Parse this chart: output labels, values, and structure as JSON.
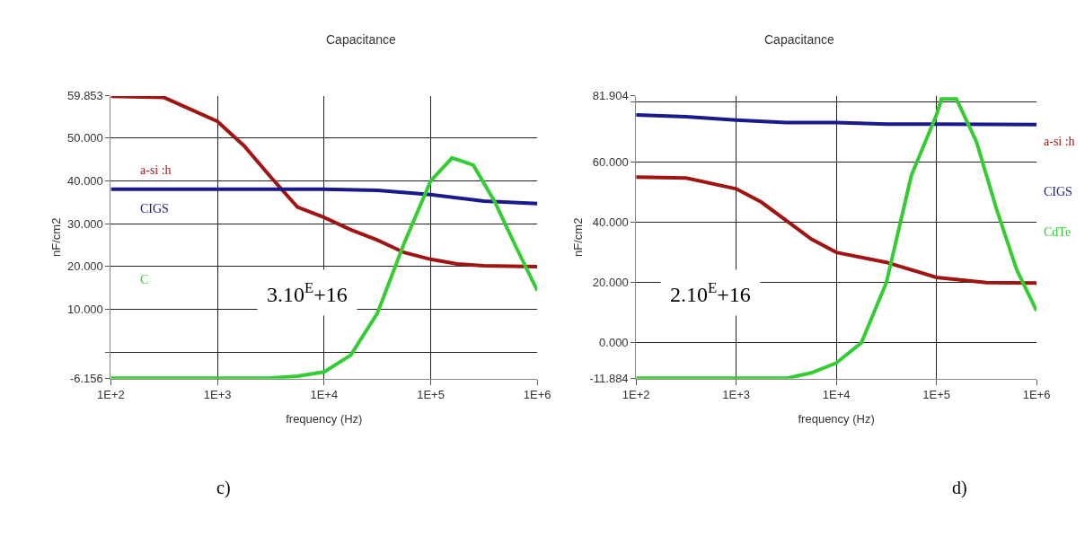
{
  "chart_data": [
    {
      "type": "line",
      "title": "Capacitance",
      "xlabel": "frequency (Hz)",
      "ylabel": "nF/cm2",
      "log": "x",
      "grid": true,
      "marker": "none",
      "line_style": "solid",
      "xlim": [
        100,
        1000000
      ],
      "xticks": [
        {
          "value": 100,
          "label": "1E+2"
        },
        {
          "value": 1000,
          "label": "1E+3"
        },
        {
          "value": 10000,
          "label": "1E+4"
        },
        {
          "value": 100000,
          "label": "1E+5"
        },
        {
          "value": 1000000,
          "label": "1E+6"
        }
      ],
      "ylim": [
        -6.156,
        59.853
      ],
      "yticks": [
        {
          "value": -6.156,
          "label": "-6.156"
        },
        {
          "value": 0,
          "label": null
        },
        {
          "value": 10,
          "label": "10.000"
        },
        {
          "value": 20,
          "label": "20.000"
        },
        {
          "value": 30,
          "label": "30.000"
        },
        {
          "value": 40,
          "label": "40.000"
        },
        {
          "value": 50,
          "label": "50.000"
        },
        {
          "value": 59.853,
          "label": "59.853"
        }
      ],
      "series": [
        {
          "name": "a-si :h",
          "color": "#a01414",
          "x": [
            100,
            316,
            1000,
            1778,
            3162,
            5623,
            10000,
            17783,
            31623,
            56234,
            100000,
            177828,
            316228,
            562341,
            1000000
          ],
          "values": [
            59.8,
            59.5,
            53.9,
            48.2,
            40.9,
            33.9,
            31.5,
            28.6,
            26.2,
            23.3,
            21.7,
            20.6,
            20.2,
            20.1,
            20.0
          ]
        },
        {
          "name": "CIGS",
          "color": "#1a1a8c",
          "x": [
            100,
            1000,
            10000,
            31623,
            100000,
            316228,
            1000000
          ],
          "values": [
            38.1,
            38.1,
            38.1,
            37.8,
            36.8,
            35.3,
            34.7
          ]
        },
        {
          "name": "C",
          "color": "#33cc33",
          "x": [
            100,
            1000,
            3162,
            5623,
            10000,
            17783,
            31623,
            56234,
            100000,
            158489,
            251189,
            398107,
            630957,
            1000000
          ],
          "values": [
            -6.1,
            -6.1,
            -6.0,
            -5.6,
            -4.6,
            -0.7,
            9.1,
            25.4,
            40.0,
            45.4,
            43.7,
            35.2,
            24.6,
            14.4
          ]
        }
      ],
      "annotations": [
        "3.10$^{E}$+16",
        "c)"
      ]
    },
    {
      "type": "line",
      "title": "Capacitance",
      "xlabel": "frequency (Hz)",
      "ylabel": "nF/cm2",
      "log": "x",
      "grid": true,
      "marker": "none",
      "line_style": "solid",
      "xlim": [
        100,
        1000000
      ],
      "xticks": [
        {
          "value": 100,
          "label": "1E+2"
        },
        {
          "value": 1000,
          "label": "1E+3"
        },
        {
          "value": 10000,
          "label": "1E+4"
        },
        {
          "value": 100000,
          "label": "1E+5"
        },
        {
          "value": 1000000,
          "label": "1E+6"
        }
      ],
      "ylim": [
        -11.884,
        81.904
      ],
      "yticks": [
        {
          "value": -11.884,
          "label": "-11.884"
        },
        {
          "value": 0,
          "label": "0.000"
        },
        {
          "value": 20,
          "label": "20.000"
        },
        {
          "value": 40,
          "label": "40.000"
        },
        {
          "value": 60,
          "label": "60.000"
        },
        {
          "value": 80,
          "label": null
        },
        {
          "value": 81.904,
          "label": "81.904"
        }
      ],
      "series": [
        {
          "name": "a-si :h",
          "color": "#a01414",
          "x": [
            100,
            316,
            1000,
            1778,
            3162,
            5623,
            10000,
            31623,
            100000,
            316228,
            1000000
          ],
          "values": [
            55.0,
            54.7,
            51.1,
            46.7,
            40.6,
            34.4,
            30.0,
            26.7,
            21.7,
            20.0,
            19.8
          ]
        },
        {
          "name": "CIGS",
          "color": "#1a1a8c",
          "x": [
            100,
            316,
            1000,
            3162,
            10000,
            31623,
            100000,
            1000000
          ],
          "values": [
            75.6,
            75.0,
            73.9,
            73.1,
            73.1,
            72.6,
            72.6,
            72.4
          ]
        },
        {
          "name": "CdTe",
          "color": "#33cc33",
          "x": [
            100,
            1000,
            3162,
            5623,
            10000,
            17783,
            31623,
            56234,
            100000,
            112202,
            158489,
            251189,
            398107,
            630957,
            1000000
          ],
          "values": [
            -11.8,
            -11.8,
            -11.8,
            -10.0,
            -6.7,
            0.0,
            20.0,
            55.6,
            75.6,
            80.9,
            80.9,
            66.7,
            44.4,
            24.4,
            10.6
          ]
        }
      ],
      "annotations": [
        "2.10$^{E}$+16",
        "d)"
      ]
    }
  ]
}
